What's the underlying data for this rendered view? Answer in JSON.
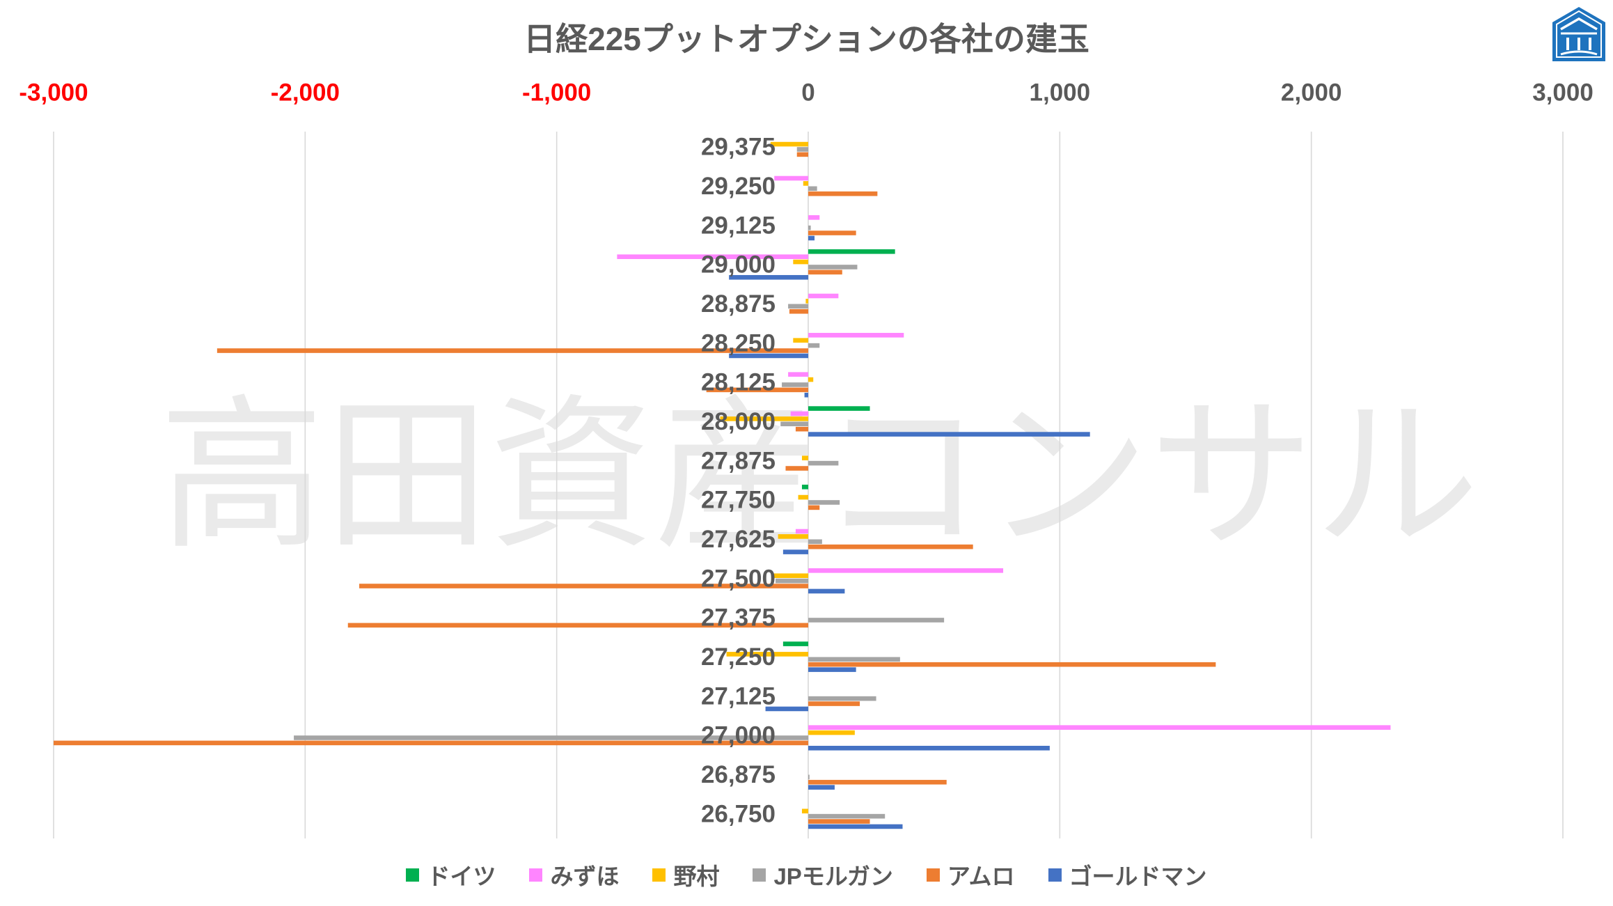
{
  "chart_data": {
    "type": "bar",
    "orientation": "horizontal",
    "title": "日経225プットオプションの各社の建玉",
    "categories": [
      "29,375",
      "29,250",
      "29,125",
      "29,000",
      "28,875",
      "28,250",
      "28,125",
      "28,000",
      "27,875",
      "27,750",
      "27,625",
      "27,500",
      "27,375",
      "27,250",
      "27,125",
      "27,000",
      "26,875",
      "26,750"
    ],
    "series": [
      {
        "name": "ドイツ",
        "color": "#00B050",
        "values": [
          0,
          0,
          0,
          345,
          0,
          0,
          0,
          245,
          0,
          -25,
          0,
          0,
          0,
          -100,
          0,
          0,
          0,
          0
        ]
      },
      {
        "name": "みずほ",
        "color": "#FF85FF",
        "values": [
          0,
          -135,
          45,
          -760,
          120,
          380,
          -80,
          -70,
          0,
          0,
          -50,
          775,
          0,
          0,
          0,
          2315,
          0,
          0
        ]
      },
      {
        "name": "野村",
        "color": "#FFC000",
        "values": [
          -150,
          -20,
          0,
          -60,
          -10,
          -60,
          20,
          -350,
          -25,
          -40,
          -120,
          -140,
          0,
          -325,
          0,
          185,
          0,
          -25
        ]
      },
      {
        "name": "JPモルガン",
        "color": "#A5A5A5",
        "values": [
          -45,
          35,
          10,
          195,
          -80,
          45,
          -105,
          -110,
          120,
          125,
          55,
          -130,
          540,
          365,
          270,
          -2045,
          5,
          305
        ]
      },
      {
        "name": "アムロ",
        "color": "#ED7D31",
        "values": [
          -45,
          275,
          190,
          135,
          -75,
          -2350,
          -405,
          -50,
          -90,
          45,
          655,
          -1785,
          -1830,
          1620,
          205,
          -3000,
          550,
          245
        ]
      },
      {
        "name": "ゴールドマン",
        "color": "#4472C4",
        "values": [
          0,
          0,
          25,
          -315,
          0,
          -315,
          -15,
          1120,
          0,
          0,
          -100,
          145,
          0,
          190,
          -170,
          960,
          105,
          375
        ]
      }
    ],
    "xlim": [
      -3000,
      3000
    ],
    "x_ticks": [
      -3000,
      -2000,
      -1000,
      0,
      1000,
      2000,
      3000
    ],
    "x_tick_labels": [
      "-3,000",
      "-2,000",
      "-1,000",
      "0",
      "1,000",
      "2,000",
      "3,000"
    ],
    "grid": true,
    "legend": "bottom"
  },
  "watermark": "高田資産コンサル",
  "logo": {
    "icon": "temple-logo-icon"
  },
  "colors": {
    "text": "#595959",
    "negative_tick": "#FF0000",
    "grid": "#D9D9D9",
    "logo": "#1E73BE"
  }
}
